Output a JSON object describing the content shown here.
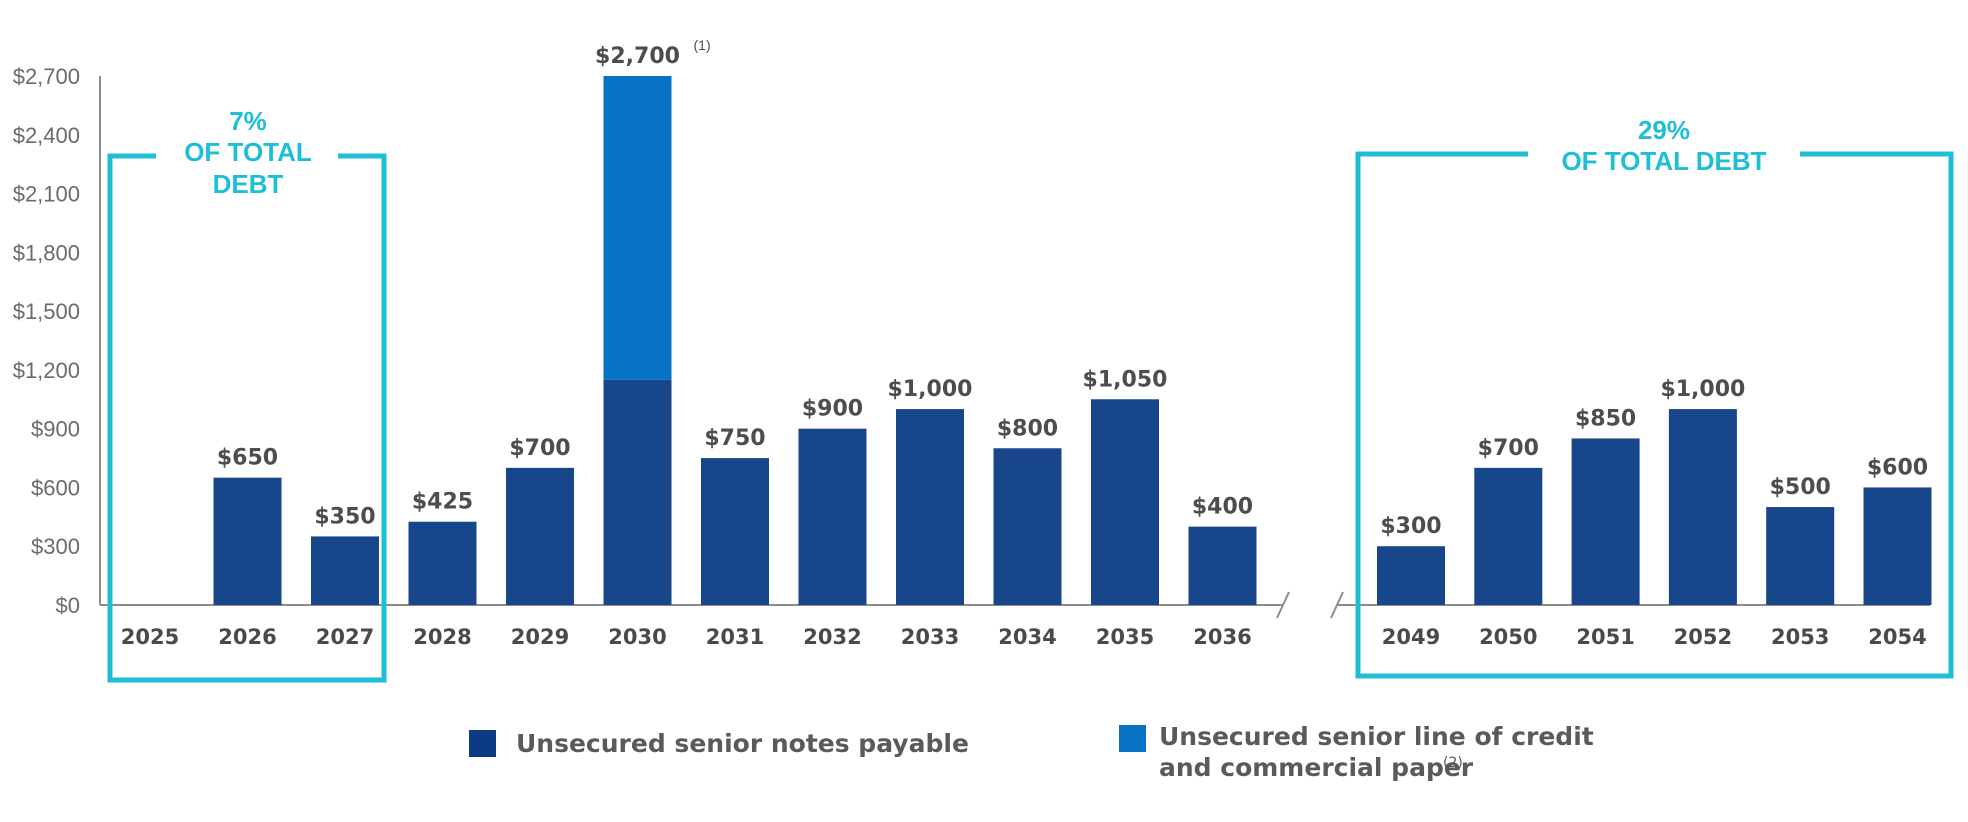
{
  "chart_data": {
    "type": "bar",
    "stacked": true,
    "title": "",
    "xlabel": "",
    "ylabel": "",
    "ylim": [
      0,
      2700
    ],
    "yticks": [
      0,
      300,
      600,
      900,
      1200,
      1500,
      1800,
      2100,
      2400,
      2700
    ],
    "ytick_labels": [
      "$0",
      "$300",
      "$600",
      "$900",
      "$1,200",
      "$1,500",
      "$1,800",
      "$2,100",
      "$2,400",
      "$2,700"
    ],
    "categories": [
      "2025",
      "2026",
      "2027",
      "2028",
      "2029",
      "2030",
      "2031",
      "2032",
      "2033",
      "2034",
      "2035",
      "2036",
      "2049",
      "2050",
      "2051",
      "2052",
      "2053",
      "2054"
    ],
    "axis_break_after": "2036",
    "series": [
      {
        "name": "Unsecured senior notes payable",
        "color": "#17468b",
        "values": [
          0,
          650,
          350,
          425,
          700,
          1150,
          750,
          900,
          1000,
          800,
          1050,
          400,
          300,
          700,
          850,
          1000,
          500,
          600
        ]
      },
      {
        "name": "Unsecured senior line of credit and commercial paper",
        "color": "#0872c4",
        "values": [
          0,
          0,
          0,
          0,
          0,
          1550,
          0,
          0,
          0,
          0,
          0,
          0,
          0,
          0,
          0,
          0,
          0,
          0
        ]
      }
    ],
    "data_labels": [
      "",
      "$650",
      "$350",
      "$425",
      "$700",
      "$2,700",
      "$750",
      "$900",
      "$1,000",
      "$800",
      "$1,050",
      "$400",
      "$300",
      "$700",
      "$850",
      "$1,000",
      "$500",
      "$600"
    ],
    "data_label_footnote": {
      "category": "2030",
      "text": "(1)"
    },
    "callouts": [
      {
        "lines": [
          "7%",
          "OF TOTAL",
          "DEBT"
        ],
        "range": [
          "2025",
          "2027"
        ]
      },
      {
        "lines": [
          "29%",
          "OF TOTAL DEBT"
        ],
        "range": [
          "2049",
          "2054"
        ]
      }
    ],
    "callout_color": "#1ebfd6",
    "legend": [
      {
        "lines": [
          "Unsecured senior notes payable"
        ],
        "sup": "",
        "color": "#0d3a87"
      },
      {
        "lines": [
          "Unsecured senior line of credit",
          "and commercial paper"
        ],
        "sup": "(2)",
        "color": "#0872c4"
      }
    ],
    "legend_position": "bottom"
  }
}
